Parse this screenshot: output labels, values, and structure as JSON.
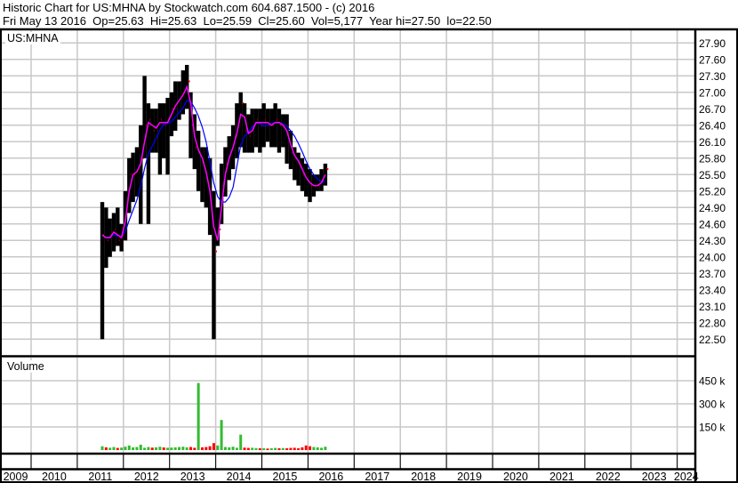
{
  "header": {
    "title_line": "Historic Chart for US:MHNA by Stockwatch.com 604.687.1500 - (c) 2016",
    "quote_line": "Fri May 13 2016  Op=25.63  Hi=25.63  Lo=25.59  Cl=25.60  Vol=5,177  Year hi=27.50  lo=22.50"
  },
  "price_panel_label": "US:MHNA",
  "volume_panel_label": "Volume",
  "colors": {
    "bars": "#000000",
    "close_marks": "#ff0000",
    "short_ma": "#ff00ff",
    "long_ma": "#0000ff",
    "vol_up": "#33bb33",
    "vol_down": "#ff0000",
    "grid": "#c8c8c8"
  },
  "chart_data": [
    {
      "type": "line",
      "title": "US:MHNA",
      "price_ticks": [
        "27.90",
        "27.60",
        "27.30",
        "27.00",
        "26.70",
        "26.40",
        "26.10",
        "25.80",
        "25.50",
        "25.20",
        "24.90",
        "24.60",
        "24.30",
        "24.00",
        "23.70",
        "23.40",
        "23.10",
        "22.80",
        "22.50"
      ],
      "ylim": [
        22.5,
        27.9
      ],
      "x_tick_labels": [
        "2009",
        "2010",
        "2011",
        "2012",
        "2013",
        "2014",
        "2015",
        "2016",
        "2017",
        "2018",
        "2019",
        "2020",
        "2021",
        "2022",
        "2023",
        "2024"
      ],
      "grid": true,
      "series_fields": [
        "month",
        "high",
        "low",
        "close"
      ],
      "monthly": [
        [
          "2011-07",
          25.0,
          22.5,
          24.4
        ],
        [
          "2011-08",
          24.9,
          23.8,
          24.3
        ],
        [
          "2011-09",
          24.7,
          24.0,
          24.4
        ],
        [
          "2011-10",
          24.8,
          24.1,
          24.5
        ],
        [
          "2011-11",
          24.9,
          24.2,
          24.3
        ],
        [
          "2011-12",
          24.6,
          24.1,
          24.4
        ],
        [
          "2012-01",
          25.2,
          24.3,
          24.9
        ],
        [
          "2012-02",
          25.8,
          24.8,
          25.5
        ],
        [
          "2012-03",
          25.9,
          25.0,
          25.5
        ],
        [
          "2012-04",
          26.0,
          25.1,
          25.6
        ],
        [
          "2012-05",
          26.4,
          24.6,
          25.8
        ],
        [
          "2012-06",
          27.3,
          25.8,
          26.4
        ],
        [
          "2012-07",
          26.8,
          24.6,
          26.5
        ],
        [
          "2012-08",
          26.7,
          25.9,
          26.3
        ],
        [
          "2012-09",
          26.7,
          25.9,
          26.4
        ],
        [
          "2012-10",
          26.8,
          25.5,
          26.5
        ],
        [
          "2012-11",
          26.8,
          25.8,
          26.4
        ],
        [
          "2012-12",
          26.9,
          25.5,
          26.5
        ],
        [
          "2013-01",
          27.0,
          26.2,
          26.7
        ],
        [
          "2013-02",
          27.2,
          26.3,
          26.8
        ],
        [
          "2013-03",
          27.2,
          26.5,
          26.9
        ],
        [
          "2013-04",
          27.4,
          26.6,
          27.0
        ],
        [
          "2013-05",
          27.5,
          26.7,
          27.2
        ],
        [
          "2013-06",
          27.0,
          25.8,
          26.4
        ],
        [
          "2013-07",
          26.6,
          25.6,
          26.0
        ],
        [
          "2013-08",
          26.3,
          25.2,
          25.9
        ],
        [
          "2013-09",
          26.0,
          25.0,
          25.7
        ],
        [
          "2013-10",
          26.0,
          24.9,
          25.4
        ],
        [
          "2013-11",
          25.8,
          24.4,
          25.0
        ],
        [
          "2013-12",
          25.2,
          22.5,
          24.1
        ],
        [
          "2014-01",
          24.9,
          24.2,
          24.5
        ],
        [
          "2014-02",
          25.7,
          24.6,
          25.3
        ],
        [
          "2014-03",
          26.0,
          25.1,
          25.7
        ],
        [
          "2014-04",
          26.2,
          25.4,
          25.9
        ],
        [
          "2014-05",
          26.4,
          25.6,
          26.1
        ],
        [
          "2014-06",
          26.8,
          25.8,
          26.4
        ],
        [
          "2014-07",
          27.0,
          26.0,
          26.8
        ],
        [
          "2014-08",
          26.8,
          25.9,
          26.3
        ],
        [
          "2014-09",
          26.6,
          25.9,
          26.2
        ],
        [
          "2014-10",
          26.7,
          25.9,
          26.4
        ],
        [
          "2014-11",
          26.7,
          26.0,
          26.5
        ],
        [
          "2014-12",
          26.7,
          25.9,
          26.4
        ],
        [
          "2015-01",
          26.8,
          26.0,
          26.5
        ],
        [
          "2015-02",
          26.7,
          26.1,
          26.4
        ],
        [
          "2015-03",
          26.7,
          26.0,
          26.4
        ],
        [
          "2015-04",
          26.8,
          26.0,
          26.5
        ],
        [
          "2015-05",
          26.7,
          25.9,
          26.4
        ],
        [
          "2015-06",
          26.6,
          26.0,
          26.4
        ],
        [
          "2015-07",
          26.6,
          25.7,
          26.2
        ],
        [
          "2015-08",
          26.3,
          25.6,
          25.9
        ],
        [
          "2015-09",
          26.0,
          25.4,
          25.8
        ],
        [
          "2015-10",
          25.9,
          25.3,
          25.7
        ],
        [
          "2015-11",
          25.8,
          25.2,
          25.5
        ],
        [
          "2015-12",
          25.7,
          25.1,
          25.4
        ],
        [
          "2016-01",
          25.6,
          25.0,
          25.3
        ],
        [
          "2016-02",
          25.5,
          25.1,
          25.3
        ],
        [
          "2016-03",
          25.5,
          25.2,
          25.3
        ],
        [
          "2016-04",
          25.6,
          25.2,
          25.4
        ],
        [
          "2016-05",
          25.7,
          25.3,
          25.6
        ]
      ]
    },
    {
      "type": "bar",
      "title": "Volume",
      "y_ticks": [
        "450 k",
        "300 k",
        "150 k"
      ],
      "ylim_k": [
        0,
        500
      ],
      "volume_k": [
        25,
        18,
        15,
        20,
        14,
        16,
        22,
        30,
        18,
        20,
        35,
        15,
        20,
        16,
        18,
        22,
        17,
        15,
        16,
        18,
        20,
        22,
        18,
        20,
        15,
        435,
        18,
        20,
        25,
        45,
        30,
        195,
        20,
        18,
        22,
        15,
        100,
        16,
        14,
        15,
        13,
        12,
        12,
        10,
        12,
        14,
        12,
        13,
        12,
        14,
        15,
        12,
        18,
        30,
        25,
        20,
        18,
        15,
        22
      ]
    }
  ]
}
